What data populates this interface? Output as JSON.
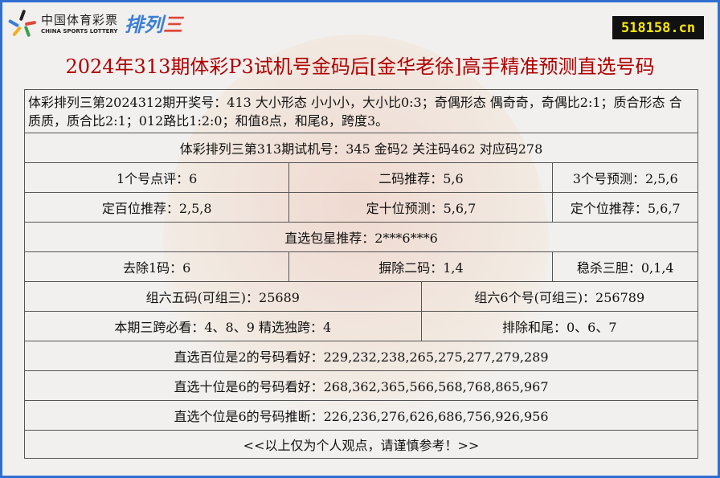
{
  "logo": {
    "cn": "中国体育彩票",
    "en": "CHINA SPORTS LOTTERY",
    "game_a": "排列",
    "game_b": "三"
  },
  "badge": "518158.cn",
  "title": "2024年313期体彩P3试机号金码后[金华老徐]高手精准预测直选号码",
  "rows": {
    "draw": "体彩排列三第2024312期开奖号：413 大小形态 小小小，大小比0:3；奇偶形态 偶奇奇，奇偶比2:1；质合形态 合质质，质合比2:1；012路比1:2:0；和值8点，和尾8，跨度3。",
    "trial": "体彩排列三第313期试机号：345 金码2 关注码462 对应码278",
    "r3": [
      "1个号点评：6",
      "二码推荐：5,6",
      "3个号预测：2,5,6"
    ],
    "r4": [
      "定百位推荐：2,5,8",
      "定十位预测：5,6,7",
      "定个位推荐：5,6,7"
    ],
    "r5": "直选包星推荐：2***6***6",
    "r6": [
      "去除1码：6",
      "摒除二码：1,4",
      "稳杀三胆：0,1,4"
    ],
    "r7": [
      "组六五码(可组三)：25689",
      "组六6个号(可组三)：256789"
    ],
    "r8": [
      "本期三跨必看：4、8、9 精选独跨：4",
      "排除和尾：0、6、7"
    ],
    "r9": "直选百位是2的号码看好：229,232,238,265,275,277,279,289",
    "r10": "直选十位是6的号码看好：268,362,365,566,568,768,865,967",
    "r11": "直选个位是6的号码推断：226,236,276,626,686,756,926,956",
    "r12": "<<以上仅为个人观点，请谨慎参考！>>"
  }
}
